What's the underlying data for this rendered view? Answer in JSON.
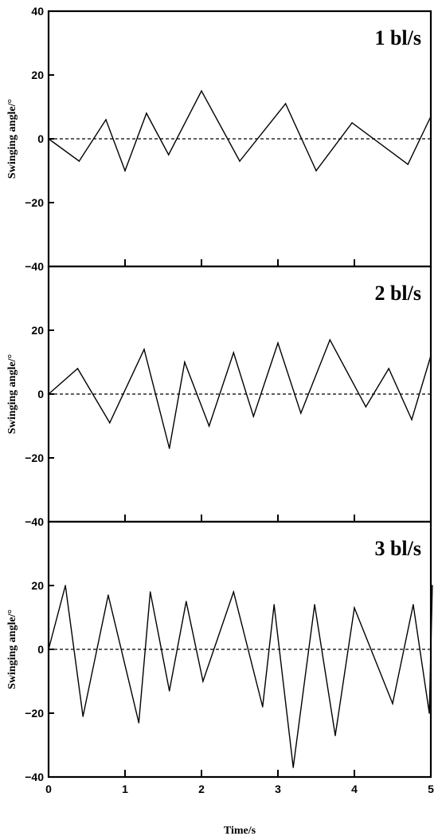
{
  "chart_data": [
    {
      "type": "line",
      "title": "1 bl/s",
      "ylabel": "Swinging angle/°",
      "xlabel": "",
      "xlim": [
        0,
        5
      ],
      "ylim": [
        -40,
        40
      ],
      "yticks": [
        40,
        20,
        0,
        -20,
        -40
      ],
      "ytick_labels": [
        "40",
        "20",
        "0",
        "−20",
        "−40"
      ],
      "xticks": [
        0,
        1,
        2,
        3,
        4,
        5
      ],
      "xtick_labels": [],
      "zero_line": "dashed",
      "series": [
        {
          "x": [
            0,
            0.4,
            0.75,
            1.0,
            1.28,
            1.57,
            2.0,
            2.5,
            3.1,
            3.5,
            3.97,
            4.7,
            5.0
          ],
          "y": [
            0,
            -7,
            6,
            -10,
            8,
            -5,
            15,
            -7,
            11,
            -10,
            5,
            -8,
            7
          ]
        }
      ]
    },
    {
      "type": "line",
      "title": "2 bl/s",
      "ylabel": "Swinging angle/°",
      "xlabel": "",
      "xlim": [
        0,
        5
      ],
      "ylim": [
        -40,
        40
      ],
      "yticks": [
        40,
        20,
        0,
        -20,
        -40
      ],
      "ytick_labels": [
        "",
        "20",
        "0",
        "−20",
        "−40"
      ],
      "xticks": [
        0,
        1,
        2,
        3,
        4,
        5
      ],
      "xtick_labels": [],
      "zero_line": "dashed",
      "series": [
        {
          "x": [
            0,
            0.38,
            0.8,
            1.25,
            1.58,
            1.78,
            2.1,
            2.42,
            2.68,
            3.0,
            3.3,
            3.68,
            4.15,
            4.45,
            4.75,
            5.0
          ],
          "y": [
            0,
            8,
            -9,
            14,
            -17,
            10,
            -10,
            13,
            -7,
            16,
            -6,
            17,
            -4,
            8,
            -8,
            12
          ]
        }
      ]
    },
    {
      "type": "line",
      "title": "3 bl/s",
      "ylabel": "Swinging angle/°",
      "xlabel": "Time/s",
      "xlim": [
        0,
        5
      ],
      "ylim": [
        -40,
        40
      ],
      "yticks": [
        40,
        20,
        0,
        -20,
        -40
      ],
      "ytick_labels": [
        "",
        "20",
        "0",
        "−20",
        "−40"
      ],
      "xticks": [
        0,
        1,
        2,
        3,
        4,
        5
      ],
      "xtick_labels": [
        "0",
        "1",
        "2",
        "3",
        "4",
        "5"
      ],
      "zero_line": "dashed",
      "series": [
        {
          "x": [
            0,
            0.22,
            0.45,
            0.78,
            1.18,
            1.33,
            1.58,
            1.8,
            2.02,
            2.42,
            2.8,
            2.95,
            3.2,
            3.48,
            3.75,
            4.0,
            4.5,
            4.77,
            4.98,
            5.02
          ],
          "y": [
            0,
            20,
            -21,
            17,
            -23,
            18,
            -13,
            15,
            -10,
            18,
            -18,
            14,
            -37,
            14,
            -27,
            13,
            -17,
            14,
            -20,
            20
          ]
        }
      ]
    }
  ]
}
